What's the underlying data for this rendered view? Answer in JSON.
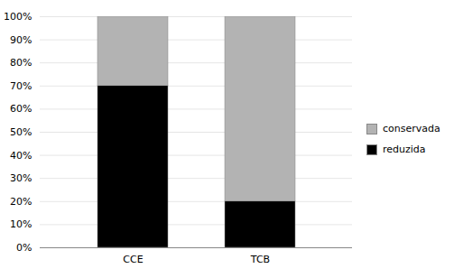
{
  "chart_data": {
    "type": "bar",
    "stacked": true,
    "categories": [
      "CCE",
      "TCB"
    ],
    "series": [
      {
        "name": "reduzida",
        "color": "#000000",
        "values": [
          70,
          20
        ]
      },
      {
        "name": "conservada",
        "color": "#b3b3b3",
        "values": [
          30,
          80
        ]
      }
    ],
    "ylim": [
      0,
      100
    ],
    "yticks": [
      {
        "value": 0,
        "label": "0%"
      },
      {
        "value": 10,
        "label": "10%"
      },
      {
        "value": 20,
        "label": "20%"
      },
      {
        "value": 30,
        "label": "30%"
      },
      {
        "value": 40,
        "label": "40%"
      },
      {
        "value": 50,
        "label": "50%"
      },
      {
        "value": 60,
        "label": "60%"
      },
      {
        "value": 70,
        "label": "70%"
      },
      {
        "value": 80,
        "label": "80%"
      },
      {
        "value": 90,
        "label": "90%"
      },
      {
        "value": 100,
        "label": "100%"
      }
    ],
    "grid": true,
    "legend": "right"
  }
}
